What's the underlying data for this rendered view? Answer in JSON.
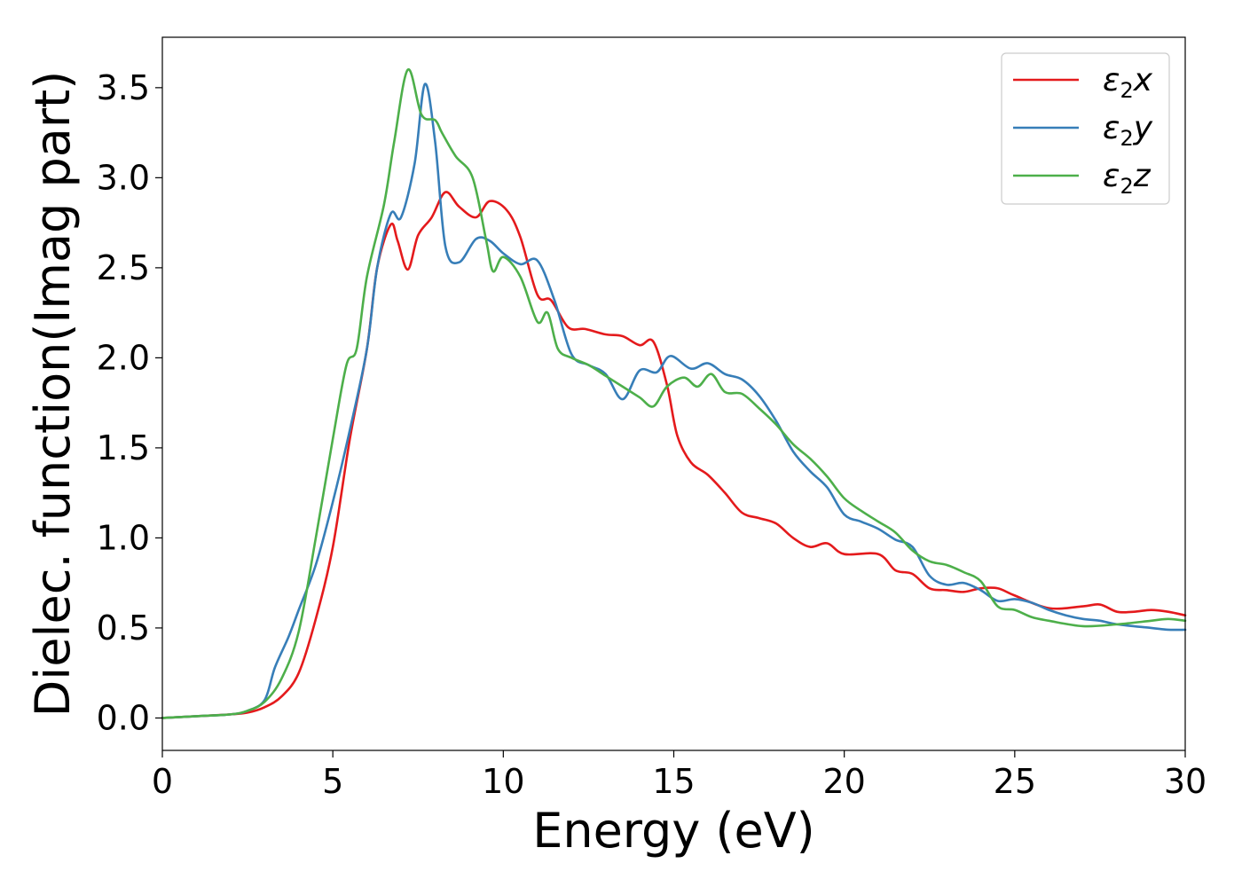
{
  "chart_data": {
    "type": "line",
    "title": "",
    "xlabel": "Energy (eV)",
    "ylabel": "Dielec. function(Imag part)",
    "xlim": [
      0,
      30
    ],
    "ylim": [
      -0.18,
      3.78
    ],
    "xticks": [
      0,
      5,
      10,
      15,
      20,
      25,
      30
    ],
    "xtick_labels": [
      "0",
      "5",
      "10",
      "15",
      "20",
      "25",
      "30"
    ],
    "yticks": [
      0.0,
      0.5,
      1.0,
      1.5,
      2.0,
      2.5,
      3.0,
      3.5
    ],
    "ytick_labels": [
      "0.0",
      "0.5",
      "1.0",
      "1.5",
      "2.0",
      "2.5",
      "3.0",
      "3.5"
    ],
    "grid": false,
    "legend_position": "top-right",
    "series": [
      {
        "name": "ε₂x",
        "legend_symbol": "ε",
        "legend_subscript": "2",
        "legend_suffix": "x",
        "color": "#e41a1c",
        "points": [
          [
            0,
            0
          ],
          [
            1,
            0.01
          ],
          [
            2,
            0.02
          ],
          [
            2.5,
            0.03
          ],
          [
            3,
            0.06
          ],
          [
            3.5,
            0.12
          ],
          [
            4,
            0.25
          ],
          [
            4.5,
            0.55
          ],
          [
            5,
            0.95
          ],
          [
            5.5,
            1.55
          ],
          [
            6,
            2.05
          ],
          [
            6.3,
            2.5
          ],
          [
            6.7,
            2.74
          ],
          [
            6.9,
            2.65
          ],
          [
            7.2,
            2.49
          ],
          [
            7.5,
            2.68
          ],
          [
            7.9,
            2.78
          ],
          [
            8.3,
            2.92
          ],
          [
            8.7,
            2.84
          ],
          [
            9.2,
            2.78
          ],
          [
            9.6,
            2.87
          ],
          [
            10.1,
            2.82
          ],
          [
            10.5,
            2.67
          ],
          [
            11,
            2.35
          ],
          [
            11.4,
            2.32
          ],
          [
            11.9,
            2.17
          ],
          [
            12.4,
            2.16
          ],
          [
            13,
            2.13
          ],
          [
            13.5,
            2.12
          ],
          [
            14,
            2.07
          ],
          [
            14.4,
            2.09
          ],
          [
            14.8,
            1.85
          ],
          [
            15.1,
            1.57
          ],
          [
            15.5,
            1.42
          ],
          [
            16,
            1.35
          ],
          [
            16.5,
            1.25
          ],
          [
            17,
            1.14
          ],
          [
            17.5,
            1.11
          ],
          [
            18,
            1.08
          ],
          [
            18.5,
            1.0
          ],
          [
            19,
            0.95
          ],
          [
            19.5,
            0.97
          ],
          [
            20,
            0.91
          ],
          [
            21,
            0.91
          ],
          [
            21.5,
            0.82
          ],
          [
            22,
            0.8
          ],
          [
            22.5,
            0.72
          ],
          [
            23,
            0.71
          ],
          [
            23.5,
            0.7
          ],
          [
            24,
            0.72
          ],
          [
            24.5,
            0.72
          ],
          [
            25,
            0.68
          ],
          [
            26,
            0.61
          ],
          [
            27,
            0.62
          ],
          [
            27.5,
            0.63
          ],
          [
            28,
            0.59
          ],
          [
            28.5,
            0.59
          ],
          [
            29,
            0.6
          ],
          [
            29.5,
            0.59
          ],
          [
            30,
            0.57
          ]
        ]
      },
      {
        "name": "ε₂y",
        "legend_symbol": "ε",
        "legend_subscript": "2",
        "legend_suffix": "y",
        "color": "#377eb8",
        "points": [
          [
            0,
            0
          ],
          [
            1,
            0.01
          ],
          [
            2,
            0.02
          ],
          [
            2.5,
            0.04
          ],
          [
            3,
            0.1
          ],
          [
            3.3,
            0.28
          ],
          [
            3.7,
            0.45
          ],
          [
            4,
            0.6
          ],
          [
            4.5,
            0.85
          ],
          [
            5,
            1.2
          ],
          [
            5.5,
            1.6
          ],
          [
            6,
            2.05
          ],
          [
            6.3,
            2.5
          ],
          [
            6.7,
            2.8
          ],
          [
            7,
            2.78
          ],
          [
            7.4,
            3.08
          ],
          [
            7.7,
            3.52
          ],
          [
            8,
            3.2
          ],
          [
            8.3,
            2.62
          ],
          [
            8.7,
            2.53
          ],
          [
            9.2,
            2.66
          ],
          [
            9.6,
            2.65
          ],
          [
            10,
            2.58
          ],
          [
            10.5,
            2.52
          ],
          [
            11,
            2.54
          ],
          [
            11.5,
            2.32
          ],
          [
            12,
            2.02
          ],
          [
            12.5,
            1.96
          ],
          [
            13,
            1.91
          ],
          [
            13.5,
            1.77
          ],
          [
            14,
            1.93
          ],
          [
            14.5,
            1.92
          ],
          [
            14.9,
            2.01
          ],
          [
            15.5,
            1.94
          ],
          [
            16,
            1.97
          ],
          [
            16.5,
            1.91
          ],
          [
            17,
            1.88
          ],
          [
            17.5,
            1.79
          ],
          [
            18,
            1.65
          ],
          [
            18.5,
            1.48
          ],
          [
            19,
            1.37
          ],
          [
            19.5,
            1.28
          ],
          [
            20,
            1.13
          ],
          [
            20.5,
            1.09
          ],
          [
            21,
            1.05
          ],
          [
            21.5,
            0.99
          ],
          [
            22,
            0.95
          ],
          [
            22.5,
            0.79
          ],
          [
            23,
            0.74
          ],
          [
            23.5,
            0.75
          ],
          [
            24,
            0.71
          ],
          [
            24.5,
            0.65
          ],
          [
            25,
            0.66
          ],
          [
            25.5,
            0.64
          ],
          [
            26,
            0.6
          ],
          [
            26.5,
            0.57
          ],
          [
            27,
            0.55
          ],
          [
            27.5,
            0.54
          ],
          [
            28,
            0.52
          ],
          [
            29,
            0.5
          ],
          [
            29.5,
            0.49
          ],
          [
            30,
            0.49
          ]
        ]
      },
      {
        "name": "ε₂z",
        "legend_symbol": "ε",
        "legend_subscript": "2",
        "legend_suffix": "z",
        "color": "#4daf4a",
        "points": [
          [
            0,
            0
          ],
          [
            1,
            0.01
          ],
          [
            2,
            0.02
          ],
          [
            2.5,
            0.04
          ],
          [
            3,
            0.09
          ],
          [
            3.5,
            0.22
          ],
          [
            4,
            0.48
          ],
          [
            4.5,
            1.0
          ],
          [
            5,
            1.55
          ],
          [
            5.4,
            1.96
          ],
          [
            5.7,
            2.05
          ],
          [
            6,
            2.45
          ],
          [
            6.5,
            2.85
          ],
          [
            6.8,
            3.2
          ],
          [
            7.2,
            3.6
          ],
          [
            7.6,
            3.35
          ],
          [
            8,
            3.32
          ],
          [
            8.2,
            3.25
          ],
          [
            8.6,
            3.12
          ],
          [
            9.1,
            3.0
          ],
          [
            9.5,
            2.65
          ],
          [
            9.7,
            2.48
          ],
          [
            10,
            2.56
          ],
          [
            10.5,
            2.45
          ],
          [
            11,
            2.2
          ],
          [
            11.3,
            2.25
          ],
          [
            11.6,
            2.05
          ],
          [
            12,
            2.0
          ],
          [
            12.5,
            1.96
          ],
          [
            13,
            1.9
          ],
          [
            13.5,
            1.84
          ],
          [
            14,
            1.78
          ],
          [
            14.4,
            1.73
          ],
          [
            14.8,
            1.84
          ],
          [
            15.3,
            1.89
          ],
          [
            15.7,
            1.84
          ],
          [
            16.1,
            1.91
          ],
          [
            16.5,
            1.81
          ],
          [
            17,
            1.8
          ],
          [
            17.5,
            1.72
          ],
          [
            18,
            1.63
          ],
          [
            18.5,
            1.52
          ],
          [
            19,
            1.44
          ],
          [
            19.5,
            1.34
          ],
          [
            20,
            1.22
          ],
          [
            20.5,
            1.15
          ],
          [
            21,
            1.09
          ],
          [
            21.5,
            1.03
          ],
          [
            22,
            0.93
          ],
          [
            22.5,
            0.87
          ],
          [
            23,
            0.85
          ],
          [
            23.5,
            0.81
          ],
          [
            24,
            0.76
          ],
          [
            24.5,
            0.62
          ],
          [
            25,
            0.6
          ],
          [
            25.5,
            0.56
          ],
          [
            26,
            0.54
          ],
          [
            27,
            0.51
          ],
          [
            28,
            0.52
          ],
          [
            29,
            0.54
          ],
          [
            29.5,
            0.55
          ],
          [
            30,
            0.54
          ]
        ]
      }
    ]
  }
}
